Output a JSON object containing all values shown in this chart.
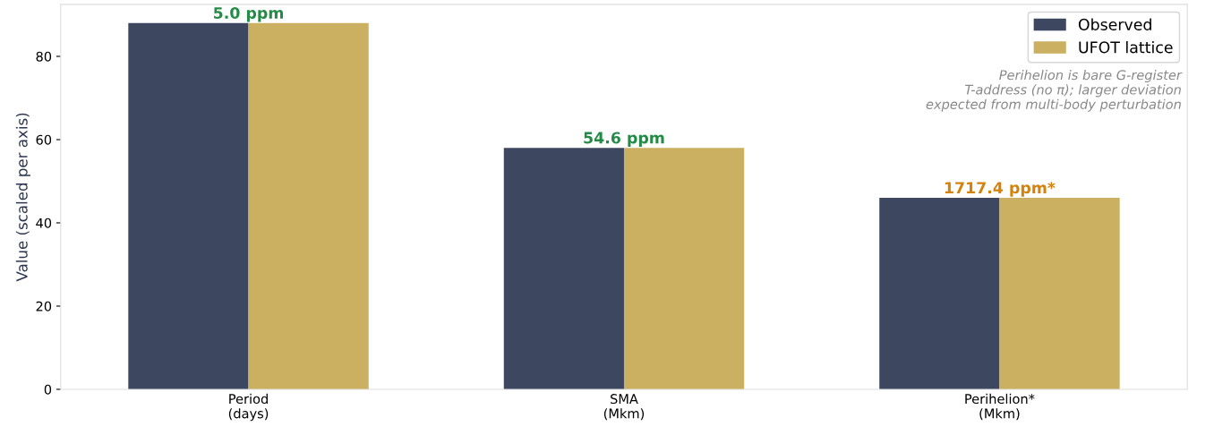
{
  "chart_data": {
    "type": "bar",
    "ylabel": "Value (scaled per axis)",
    "categories": [
      "Period\n(days)",
      "SMA\n(Mkm)",
      "Perihelion*\n(Mkm)"
    ],
    "series": [
      {
        "name": "Observed",
        "color": "#3d4860",
        "values": [
          88.0,
          58.0,
          46.0
        ]
      },
      {
        "name": "UFOT lattice",
        "color": "#cbb062",
        "values": [
          88.0,
          58.0,
          46.0
        ]
      }
    ],
    "ylim": [
      0,
      92.5
    ],
    "yticks": [
      0,
      20,
      40,
      60,
      80
    ],
    "grid": false,
    "legend": "top right",
    "annotations": [
      {
        "text": "5.0 ppm",
        "x": "Period\n(days)",
        "y": 88.0
      },
      {
        "text": "54.6 ppm",
        "x": "SMA\n(Mkm)",
        "y": 58.0
      },
      {
        "text": "1717.4 ppm*",
        "x": "Perihelion*\n(Mkm)",
        "y": 46.0
      },
      "Perihelion is bare G-register\nT-address (no π); larger deviation\nexpected from multi-body perturbation"
    ]
  }
}
